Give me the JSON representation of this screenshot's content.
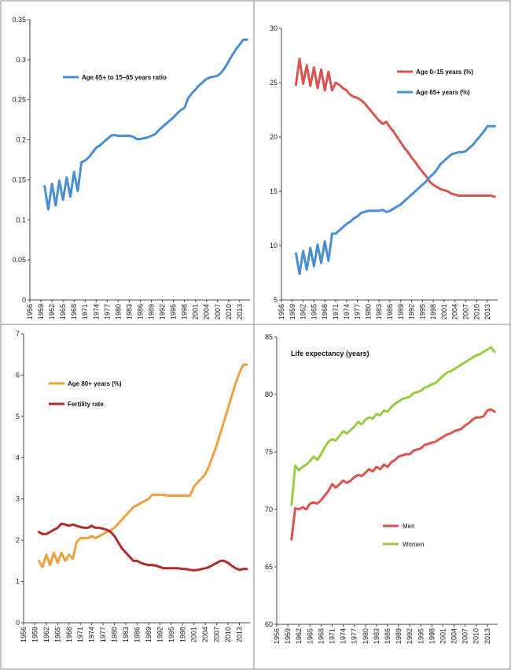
{
  "colors": {
    "blue": "#4a8fd4",
    "red": "#d9534f",
    "orange": "#f0a040",
    "darkred": "#b22b2b",
    "green": "#99cc44",
    "panel_border": "#888888",
    "axis": "#444444"
  },
  "x_tick_labels": [
    "1956",
    "1959",
    "1962",
    "1965",
    "1968",
    "1971",
    "1974",
    "1977",
    "1980",
    "1983",
    "1986",
    "1989",
    "1992",
    "1995",
    "1998",
    "2001",
    "2004",
    "2007",
    "2010",
    "2013"
  ],
  "chart_data": [
    {
      "type": "line",
      "title": "",
      "legend_position": "top-left",
      "ylim": [
        0,
        0.35
      ],
      "yticks": [
        "0",
        "0.05",
        "0.1",
        "0.15",
        "0.2",
        "0.25",
        "0.3",
        "0.35"
      ],
      "series": [
        {
          "name": "Age 65+ to 15–65 years ratio",
          "color": "#4a8fd4",
          "x": [
            1960,
            1961,
            1962,
            1963,
            1964,
            1965,
            1966,
            1967,
            1968,
            1969,
            1970,
            1971,
            1972,
            1973,
            1974,
            1975,
            1976,
            1977,
            1978,
            1979,
            1980,
            1981,
            1982,
            1983,
            1984,
            1985,
            1986,
            1987,
            1988,
            1989,
            1990,
            1991,
            1992,
            1993,
            1994,
            1995,
            1996,
            1997,
            1998,
            1999,
            2000,
            2001,
            2002,
            2003,
            2004,
            2005,
            2006,
            2007,
            2008,
            2009,
            2010,
            2011,
            2012,
            2013,
            2014,
            2015
          ],
          "values": [
            0.142,
            0.113,
            0.145,
            0.118,
            0.149,
            0.125,
            0.153,
            0.129,
            0.16,
            0.136,
            0.172,
            0.174,
            0.178,
            0.184,
            0.19,
            0.193,
            0.197,
            0.201,
            0.205,
            0.206,
            0.205,
            0.205,
            0.205,
            0.205,
            0.204,
            0.201,
            0.201,
            0.202,
            0.203,
            0.205,
            0.207,
            0.212,
            0.216,
            0.22,
            0.224,
            0.228,
            0.233,
            0.237,
            0.24,
            0.252,
            0.258,
            0.263,
            0.268,
            0.272,
            0.276,
            0.278,
            0.279,
            0.28,
            0.284,
            0.29,
            0.298,
            0.306,
            0.313,
            0.319,
            0.325,
            0.325
          ]
        }
      ]
    },
    {
      "type": "line",
      "title": "",
      "legend_position": "top-right",
      "ylim": [
        5,
        30
      ],
      "yticks": [
        "5",
        "10",
        "15",
        "20",
        "25",
        "30"
      ],
      "series": [
        {
          "name": "Age 0–15 years (%)",
          "color": "#d9534f",
          "x": [
            1960,
            1961,
            1962,
            1963,
            1964,
            1965,
            1966,
            1967,
            1968,
            1969,
            1970,
            1971,
            1972,
            1973,
            1974,
            1975,
            1976,
            1977,
            1978,
            1979,
            1980,
            1981,
            1982,
            1983,
            1984,
            1985,
            1986,
            1987,
            1988,
            1989,
            1990,
            1991,
            1992,
            1993,
            1994,
            1995,
            1996,
            1997,
            1998,
            1999,
            2000,
            2001,
            2002,
            2003,
            2004,
            2005,
            2006,
            2007,
            2008,
            2009,
            2010,
            2011,
            2012,
            2013,
            2014,
            2015
          ],
          "values": [
            24.8,
            27.2,
            24.9,
            26.6,
            24.7,
            26.4,
            24.5,
            26.2,
            24.3,
            26.0,
            24.3,
            25.0,
            24.8,
            24.5,
            24.3,
            23.9,
            23.7,
            23.6,
            23.4,
            23.1,
            22.7,
            22.3,
            21.9,
            21.5,
            21.2,
            21.4,
            20.9,
            20.5,
            20.0,
            19.5,
            19.0,
            18.6,
            18.1,
            17.7,
            17.2,
            16.8,
            16.4,
            15.9,
            15.6,
            15.4,
            15.2,
            15.1,
            15.0,
            14.8,
            14.7,
            14.6,
            14.6,
            14.6,
            14.6,
            14.6,
            14.6,
            14.6,
            14.6,
            14.6,
            14.6,
            14.5
          ]
        },
        {
          "name": "Age 65+ years (%)",
          "color": "#4a8fd4",
          "x": [
            1960,
            1961,
            1962,
            1963,
            1964,
            1965,
            1966,
            1967,
            1968,
            1969,
            1970,
            1971,
            1972,
            1973,
            1974,
            1975,
            1976,
            1977,
            1978,
            1979,
            1980,
            1981,
            1982,
            1983,
            1984,
            1985,
            1986,
            1987,
            1988,
            1989,
            1990,
            1991,
            1992,
            1993,
            1994,
            1995,
            1996,
            1997,
            1998,
            1999,
            2000,
            2001,
            2002,
            2003,
            2004,
            2005,
            2006,
            2007,
            2008,
            2009,
            2010,
            2011,
            2012,
            2013,
            2014,
            2015
          ],
          "values": [
            9.3,
            7.4,
            9.5,
            7.8,
            9.8,
            8.1,
            10.1,
            8.4,
            10.4,
            8.6,
            11.1,
            11.1,
            11.4,
            11.7,
            12.0,
            12.2,
            12.5,
            12.7,
            13.0,
            13.1,
            13.2,
            13.2,
            13.2,
            13.2,
            13.3,
            13.1,
            13.2,
            13.4,
            13.6,
            13.8,
            14.1,
            14.4,
            14.7,
            15.0,
            15.3,
            15.6,
            15.9,
            16.3,
            16.6,
            17.0,
            17.5,
            17.8,
            18.1,
            18.4,
            18.5,
            18.6,
            18.6,
            18.7,
            19.0,
            19.3,
            19.7,
            20.1,
            20.5,
            21.0,
            21.0,
            21.0
          ]
        }
      ]
    },
    {
      "type": "line",
      "title": "",
      "legend_position": "top-left",
      "ylim": [
        0,
        7
      ],
      "yticks": [
        "0",
        "1",
        "2",
        "3",
        "4",
        "5",
        "6",
        "7"
      ],
      "series": [
        {
          "name": "Age 80+ years (%)",
          "color": "#f0a040",
          "x": [
            1960,
            1961,
            1962,
            1963,
            1964,
            1965,
            1966,
            1967,
            1968,
            1969,
            1970,
            1971,
            1972,
            1973,
            1974,
            1975,
            1976,
            1977,
            1978,
            1979,
            1980,
            1981,
            1982,
            1983,
            1984,
            1985,
            1986,
            1987,
            1988,
            1989,
            1990,
            1991,
            1992,
            1993,
            1994,
            1995,
            1996,
            1997,
            1998,
            1999,
            2000,
            2001,
            2002,
            2003,
            2004,
            2005,
            2006,
            2007,
            2008,
            2009,
            2010,
            2011,
            2012,
            2013,
            2014,
            2015
          ],
          "values": [
            1.5,
            1.35,
            1.65,
            1.4,
            1.7,
            1.45,
            1.7,
            1.5,
            1.65,
            1.55,
            1.95,
            2.05,
            2.05,
            2.05,
            2.1,
            2.05,
            2.1,
            2.15,
            2.2,
            2.25,
            2.3,
            2.4,
            2.5,
            2.6,
            2.7,
            2.8,
            2.85,
            2.9,
            2.95,
            3.0,
            3.1,
            3.1,
            3.1,
            3.1,
            3.08,
            3.08,
            3.08,
            3.08,
            3.08,
            3.08,
            3.08,
            3.3,
            3.4,
            3.5,
            3.6,
            3.8,
            4.05,
            4.3,
            4.6,
            4.9,
            5.2,
            5.5,
            5.8,
            6.05,
            6.25,
            6.25
          ]
        },
        {
          "name": "Fertility rate",
          "color": "#b22b2b",
          "x": [
            1960,
            1961,
            1962,
            1963,
            1964,
            1965,
            1966,
            1967,
            1968,
            1969,
            1970,
            1971,
            1972,
            1973,
            1974,
            1975,
            1976,
            1977,
            1978,
            1979,
            1980,
            1981,
            1982,
            1983,
            1984,
            1985,
            1986,
            1987,
            1988,
            1989,
            1990,
            1991,
            1992,
            1993,
            1994,
            1995,
            1996,
            1997,
            1998,
            1999,
            2000,
            2001,
            2002,
            2003,
            2004,
            2005,
            2006,
            2007,
            2008,
            2009,
            2010,
            2011,
            2012,
            2013,
            2014,
            2015
          ],
          "values": [
            2.2,
            2.15,
            2.15,
            2.2,
            2.25,
            2.3,
            2.4,
            2.38,
            2.35,
            2.38,
            2.35,
            2.32,
            2.3,
            2.3,
            2.35,
            2.3,
            2.3,
            2.28,
            2.25,
            2.2,
            2.1,
            1.95,
            1.8,
            1.7,
            1.6,
            1.5,
            1.5,
            1.45,
            1.42,
            1.4,
            1.4,
            1.38,
            1.35,
            1.32,
            1.32,
            1.32,
            1.32,
            1.32,
            1.3,
            1.3,
            1.28,
            1.27,
            1.28,
            1.3,
            1.32,
            1.35,
            1.4,
            1.45,
            1.5,
            1.5,
            1.45,
            1.38,
            1.32,
            1.28,
            1.3,
            1.3
          ]
        }
      ]
    },
    {
      "type": "line",
      "title": "Life expectancy (years)",
      "legend_position": "bottom-left",
      "ylim": [
        60,
        85
      ],
      "yticks": [
        "60",
        "65",
        "70",
        "75",
        "80",
        "85"
      ],
      "series": [
        {
          "name": "Men",
          "color": "#d9534f",
          "x": [
            1960,
            1961,
            1962,
            1963,
            1964,
            1965,
            1966,
            1967,
            1968,
            1969,
            1970,
            1971,
            1972,
            1973,
            1974,
            1975,
            1976,
            1977,
            1978,
            1979,
            1980,
            1981,
            1982,
            1983,
            1984,
            1985,
            1986,
            1987,
            1988,
            1989,
            1990,
            1991,
            1992,
            1993,
            1994,
            1995,
            1996,
            1997,
            1998,
            1999,
            2000,
            2001,
            2002,
            2003,
            2004,
            2005,
            2006,
            2007,
            2008,
            2009,
            2010,
            2011,
            2012,
            2013,
            2014,
            2015
          ],
          "values": [
            67.4,
            70.1,
            70.0,
            70.2,
            70.0,
            70.5,
            70.6,
            70.5,
            70.8,
            71.2,
            71.6,
            72.2,
            71.9,
            72.2,
            72.5,
            72.3,
            72.5,
            72.8,
            73.0,
            72.9,
            73.2,
            73.5,
            73.3,
            73.7,
            73.5,
            73.9,
            73.7,
            74.1,
            74.3,
            74.6,
            74.7,
            74.8,
            74.8,
            75.1,
            75.2,
            75.3,
            75.6,
            75.7,
            75.8,
            75.9,
            76.1,
            76.3,
            76.5,
            76.6,
            76.8,
            76.9,
            77.0,
            77.3,
            77.5,
            77.8,
            78.0,
            78.0,
            78.1,
            78.6,
            78.7,
            78.5
          ]
        },
        {
          "name": "Women",
          "color": "#99cc44",
          "x": [
            1960,
            1961,
            1962,
            1963,
            1964,
            1965,
            1966,
            1967,
            1968,
            1969,
            1970,
            1971,
            1972,
            1973,
            1974,
            1975,
            1976,
            1977,
            1978,
            1979,
            1980,
            1981,
            1982,
            1983,
            1984,
            1985,
            1986,
            1987,
            1988,
            1989,
            1990,
            1991,
            1992,
            1993,
            1994,
            1995,
            1996,
            1997,
            1998,
            1999,
            2000,
            2001,
            2002,
            2003,
            2004,
            2005,
            2006,
            2007,
            2008,
            2009,
            2010,
            2011,
            2012,
            2013,
            2014,
            2015
          ],
          "values": [
            70.4,
            73.8,
            73.4,
            73.7,
            73.9,
            74.2,
            74.6,
            74.3,
            74.8,
            75.4,
            75.9,
            76.1,
            76.0,
            76.4,
            76.8,
            76.6,
            76.9,
            77.2,
            77.6,
            77.4,
            77.8,
            78.0,
            77.9,
            78.3,
            78.2,
            78.6,
            78.5,
            78.9,
            79.2,
            79.4,
            79.6,
            79.7,
            79.8,
            80.1,
            80.2,
            80.3,
            80.6,
            80.7,
            80.9,
            81.0,
            81.3,
            81.6,
            81.9,
            82.0,
            82.2,
            82.4,
            82.6,
            82.8,
            83.0,
            83.2,
            83.4,
            83.5,
            83.7,
            83.9,
            84.1,
            83.7
          ]
        }
      ]
    }
  ]
}
